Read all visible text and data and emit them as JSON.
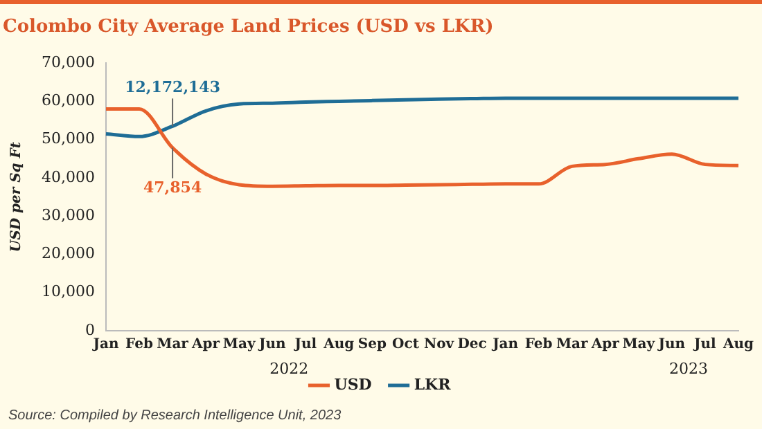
{
  "chart_data": {
    "type": "line",
    "title": "Colombo City Average Land Prices (USD vs LKR)",
    "ylabel": "USD per Sq Ft",
    "categories": [
      "Jan",
      "Feb",
      "Mar",
      "Apr",
      "May",
      "Jun",
      "Jul",
      "Aug",
      "Sep",
      "Oct",
      "Nov",
      "Dec",
      "Jan",
      "Feb",
      "Mar",
      "Apr",
      "May",
      "Jun",
      "Jul",
      "Aug"
    ],
    "series": [
      {
        "name": "USD",
        "color": "#e8612c",
        "values": [
          58000,
          58000,
          47854,
          41000,
          38200,
          37800,
          37900,
          38000,
          38000,
          38100,
          38200,
          38300,
          38400,
          38400,
          43000,
          43500,
          45000,
          46200,
          43500,
          43200
        ]
      },
      {
        "name": "LKR",
        "color": "#1f6d96",
        "values": [
          51500,
          50800,
          53500,
          57500,
          59300,
          59500,
          59800,
          60000,
          60200,
          60400,
          60600,
          60700,
          60800,
          60800,
          60800,
          60800,
          60800,
          60800,
          60800,
          60800
        ]
      }
    ],
    "ylim": [
      0,
      70000
    ],
    "yticks": [
      {
        "value": 0,
        "label": "0"
      },
      {
        "value": 10000,
        "label": "10,000"
      },
      {
        "value": 20000,
        "label": "20,000"
      },
      {
        "value": 30000,
        "label": "30,000"
      },
      {
        "value": 40000,
        "label": "40,000"
      },
      {
        "value": 50000,
        "label": "50,000"
      },
      {
        "value": 60000,
        "label": "60,000"
      },
      {
        "value": 70000,
        "label": "70,000"
      }
    ],
    "grid": false,
    "legend": "bottom",
    "marker": "none",
    "line_style": "solid",
    "annotations": [
      {
        "text": "12,172,143",
        "x": "Mar",
        "y": 53500
      },
      {
        "text": "47,854",
        "x": "Mar",
        "y": 47854
      },
      "2022",
      "2023",
      "Source: Compiled by Research Intelligence Unit, 2023"
    ]
  }
}
